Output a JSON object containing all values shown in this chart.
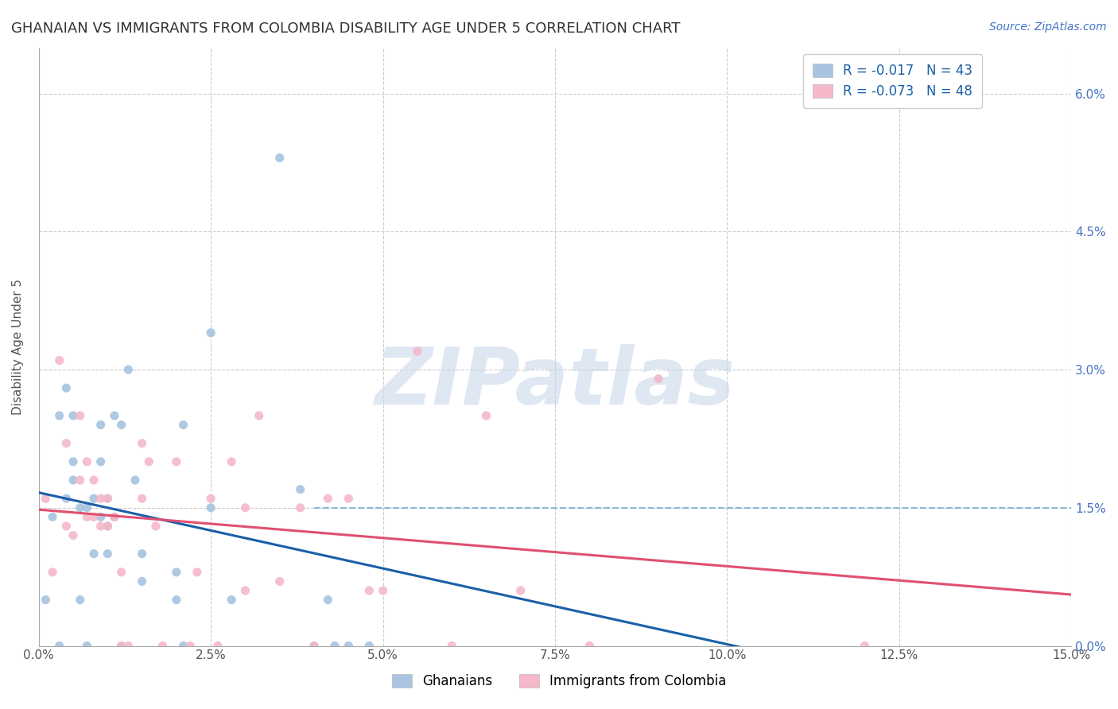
{
  "title": "GHANAIAN VS IMMIGRANTS FROM COLOMBIA DISABILITY AGE UNDER 5 CORRELATION CHART",
  "source": "Source: ZipAtlas.com",
  "ylabel": "Disability Age Under 5",
  "xlim": [
    0.0,
    0.15
  ],
  "ylim": [
    0.0,
    0.065
  ],
  "yticks": [
    0.0,
    0.015,
    0.03,
    0.045,
    0.06
  ],
  "xticks": [
    0.0,
    0.025,
    0.05,
    0.075,
    0.1,
    0.125,
    0.15
  ],
  "background_color": "#ffffff",
  "title_color": "#333333",
  "title_fontsize": 13,
  "watermark_color": "#c8d8ea",
  "legend_label1": "Ghanaians",
  "legend_label2": "Immigrants from Colombia",
  "series1": {
    "name": "Ghanaians",
    "color": "#a8c4e0",
    "R": -0.017,
    "N": 43,
    "line_color": "#1a5fa8",
    "x": [
      0.001,
      0.002,
      0.003,
      0.003,
      0.004,
      0.004,
      0.005,
      0.005,
      0.005,
      0.006,
      0.006,
      0.007,
      0.007,
      0.008,
      0.008,
      0.009,
      0.009,
      0.009,
      0.01,
      0.01,
      0.01,
      0.011,
      0.011,
      0.012,
      0.012,
      0.013,
      0.014,
      0.015,
      0.015,
      0.02,
      0.02,
      0.021,
      0.021,
      0.025,
      0.025,
      0.028,
      0.035,
      0.038,
      0.04,
      0.042,
      0.043,
      0.045,
      0.048
    ],
    "y": [
      0.005,
      0.014,
      0.0,
      0.025,
      0.016,
      0.028,
      0.018,
      0.02,
      0.025,
      0.005,
      0.015,
      0.0,
      0.015,
      0.01,
      0.016,
      0.014,
      0.02,
      0.024,
      0.01,
      0.013,
      0.016,
      0.014,
      0.025,
      0.0,
      0.024,
      0.03,
      0.018,
      0.007,
      0.01,
      0.005,
      0.008,
      0.0,
      0.024,
      0.015,
      0.034,
      0.005,
      0.053,
      0.017,
      0.0,
      0.005,
      0.0,
      0.0,
      0.0
    ]
  },
  "series2": {
    "name": "Immigrants from Colombia",
    "color": "#f4b8c8",
    "R": -0.073,
    "N": 48,
    "line_color": "#e05070",
    "x": [
      0.001,
      0.002,
      0.003,
      0.004,
      0.004,
      0.005,
      0.006,
      0.006,
      0.007,
      0.007,
      0.008,
      0.008,
      0.009,
      0.009,
      0.01,
      0.01,
      0.011,
      0.012,
      0.012,
      0.013,
      0.015,
      0.015,
      0.016,
      0.017,
      0.018,
      0.02,
      0.022,
      0.023,
      0.025,
      0.026,
      0.028,
      0.03,
      0.03,
      0.032,
      0.035,
      0.038,
      0.04,
      0.042,
      0.045,
      0.048,
      0.05,
      0.055,
      0.06,
      0.065,
      0.07,
      0.08,
      0.09,
      0.12
    ],
    "y": [
      0.016,
      0.008,
      0.031,
      0.013,
      0.022,
      0.012,
      0.018,
      0.025,
      0.014,
      0.02,
      0.014,
      0.018,
      0.013,
      0.016,
      0.013,
      0.016,
      0.014,
      0.0,
      0.008,
      0.0,
      0.016,
      0.022,
      0.02,
      0.013,
      0.0,
      0.02,
      0.0,
      0.008,
      0.016,
      0.0,
      0.02,
      0.006,
      0.015,
      0.025,
      0.007,
      0.015,
      0.0,
      0.016,
      0.016,
      0.006,
      0.006,
      0.032,
      0.0,
      0.025,
      0.006,
      0.0,
      0.029,
      0.0
    ]
  }
}
